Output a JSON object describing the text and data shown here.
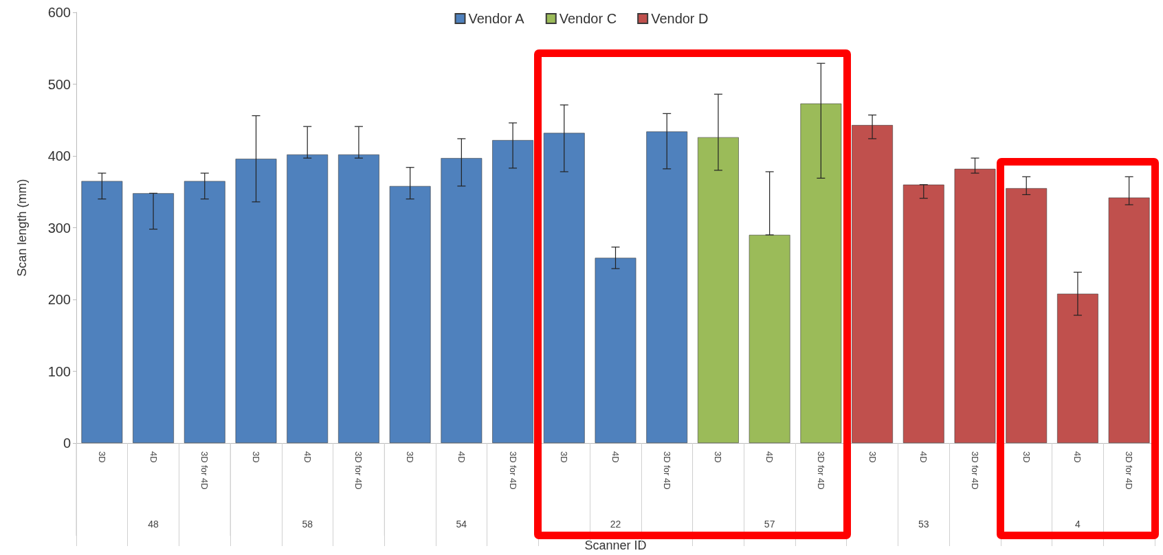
{
  "chart_data": {
    "type": "bar",
    "xlabel": "Scanner ID",
    "ylabel": "Scan length (mm)",
    "categories": [
      "3D",
      "4D",
      "3D for 4D",
      "3D",
      "4D",
      "3D for 4D",
      "3D",
      "4D",
      "3D for 4D",
      "3D",
      "4D",
      "3D for 4D",
      "3D",
      "4D",
      "3D for 4D",
      "3D",
      "4D",
      "3D for 4D",
      "3D",
      "4D",
      "3D for 4D"
    ],
    "annotations": [
      "48",
      "58",
      "54",
      "22",
      "57",
      "53",
      "4"
    ],
    "series": [
      {
        "name": "Vendor A",
        "color": "#4f81bd",
        "values": [
          365,
          348,
          365,
          396,
          402,
          402,
          358,
          397,
          422,
          432,
          258,
          434,
          null,
          null,
          null,
          null,
          null,
          null,
          null,
          null,
          null
        ],
        "errors": [
          [
            340,
            376
          ],
          [
            298,
            348
          ],
          [
            340,
            376
          ],
          [
            336,
            456
          ],
          [
            397,
            441
          ],
          [
            397,
            441
          ],
          [
            340,
            384
          ],
          [
            358,
            424
          ],
          [
            383,
            446
          ],
          [
            378,
            471
          ],
          [
            243,
            273
          ],
          [
            382,
            459
          ],
          null,
          null,
          null,
          null,
          null,
          null,
          null,
          null,
          null
        ]
      },
      {
        "name": "Vendor C",
        "color": "#9bbb59",
        "values": [
          null,
          null,
          null,
          null,
          null,
          null,
          null,
          null,
          null,
          null,
          null,
          null,
          426,
          290,
          473,
          null,
          null,
          null,
          null,
          null,
          null
        ],
        "errors": [
          null,
          null,
          null,
          null,
          null,
          null,
          null,
          null,
          null,
          null,
          null,
          null,
          [
            380,
            486
          ],
          [
            290,
            378
          ],
          [
            369,
            529
          ],
          null,
          null,
          null,
          null,
          null,
          null
        ]
      },
      {
        "name": "Vendor D",
        "color": "#c0504d",
        "values": [
          null,
          null,
          null,
          null,
          null,
          null,
          null,
          null,
          null,
          null,
          null,
          null,
          null,
          null,
          null,
          443,
          360,
          382,
          355,
          208,
          342
        ],
        "errors": [
          null,
          null,
          null,
          null,
          null,
          null,
          null,
          null,
          null,
          null,
          null,
          null,
          null,
          null,
          null,
          [
            424,
            457
          ],
          [
            341,
            360
          ],
          [
            376,
            397
          ],
          [
            346,
            371
          ],
          [
            178,
            238
          ],
          [
            332,
            371
          ]
        ]
      }
    ],
    "ylim": [
      0,
      600
    ],
    "yticks": [
      0,
      100,
      200,
      300,
      400,
      500,
      600
    ],
    "grid": false,
    "legend": "top"
  }
}
